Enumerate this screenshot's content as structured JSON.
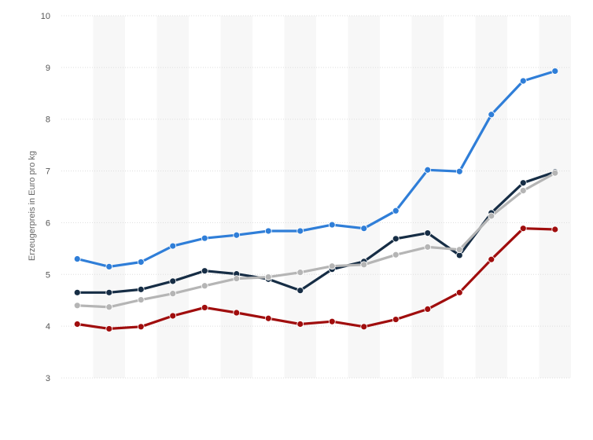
{
  "chart_data": {
    "type": "line",
    "title": "",
    "xlabel": "",
    "ylabel": "Erzeugerpreis in Euro pro kg",
    "ylim": [
      3,
      10
    ],
    "yticks": [
      "3",
      "4",
      "5",
      "6",
      "7",
      "8",
      "9",
      "10"
    ],
    "grid": true,
    "legend": "none",
    "x_count": 16,
    "series": [
      {
        "color": "#2f7ed8",
        "values": [
          5.3,
          5.15,
          5.24,
          5.55,
          5.7,
          5.76,
          5.84,
          5.84,
          5.96,
          5.89,
          6.23,
          7.02,
          6.99,
          8.09,
          8.74,
          8.93
        ]
      },
      {
        "color": "#162d45",
        "values": [
          4.65,
          4.65,
          4.71,
          4.87,
          5.07,
          5.01,
          4.91,
          4.69,
          5.1,
          5.25,
          5.69,
          5.8,
          5.37,
          6.19,
          6.77,
          6.98
        ]
      },
      {
        "color": "#b5b5b5",
        "values": [
          4.4,
          4.37,
          4.51,
          4.63,
          4.78,
          4.92,
          4.95,
          5.04,
          5.16,
          5.19,
          5.38,
          5.53,
          5.48,
          6.13,
          6.62,
          6.96
        ]
      },
      {
        "color": "#a00d0d",
        "values": [
          4.04,
          3.95,
          3.99,
          4.2,
          4.36,
          4.26,
          4.15,
          4.04,
          4.09,
          3.99,
          4.13,
          4.33,
          4.65,
          5.29,
          5.89,
          5.87
        ]
      }
    ]
  }
}
